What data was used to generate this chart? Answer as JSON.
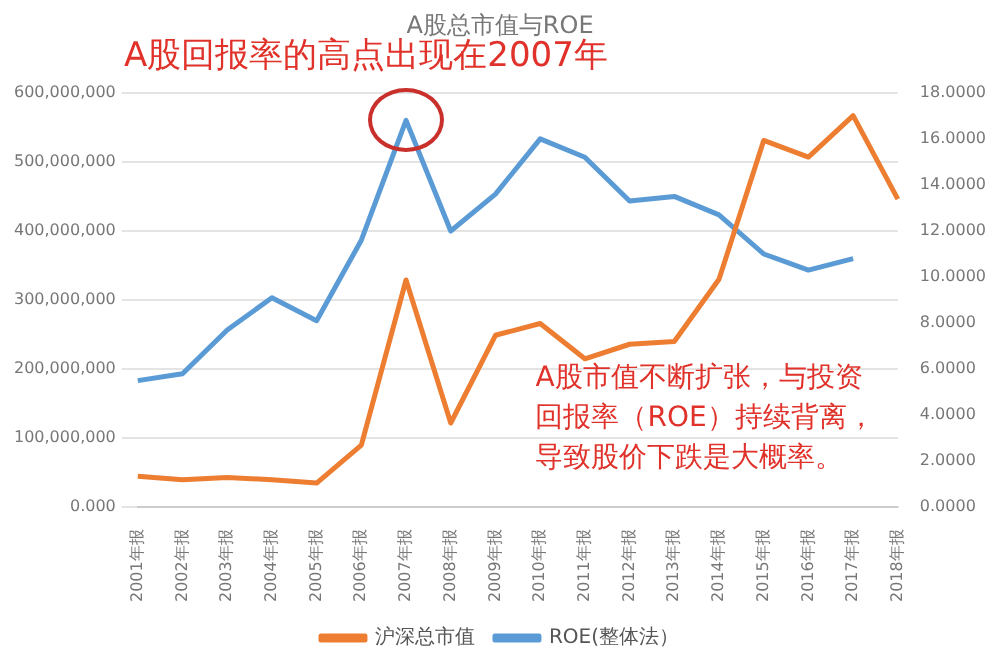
{
  "chart_data": {
    "type": "line",
    "title": "A股总市值与ROE",
    "annotations": [
      "A股回报率的高点出现在2007年",
      "A股市值不断扩张，与投资回报率（ROE）持续背离，导致股价下跌是大概率。"
    ],
    "categories": [
      "2001年报",
      "2002年报",
      "2003年报",
      "2004年报",
      "2005年报",
      "2006年报",
      "2007年报",
      "2008年报",
      "2009年报",
      "2010年报",
      "2011年报",
      "2012年报",
      "2013年报",
      "2014年报",
      "2015年报",
      "2016年报",
      "2017年报",
      "2018年报"
    ],
    "series": [
      {
        "name": "沪深总市值",
        "color": "#ed7d31",
        "values": [
          45000000,
          40000000,
          43000000,
          40000000,
          35000000,
          90000000,
          329000000,
          122000000,
          249000000,
          266000000,
          215000000,
          236000000,
          240000000,
          330000000,
          531000000,
          507000000,
          567000000,
          446000000
        ]
      },
      {
        "name": "ROE(整体法）",
        "color": "#5b9bd5",
        "axis": "y2",
        "values": [
          5.5,
          5.8,
          7.7,
          9.1,
          8.1,
          11.6,
          16.8,
          12.0,
          13.6,
          16.0,
          15.2,
          13.3,
          13.5,
          12.7,
          11.0,
          10.3,
          10.8,
          null
        ]
      }
    ],
    "ylim": [
      0,
      600000000
    ],
    "yticks": [
      {
        "value": 0,
        "label": "0.000"
      },
      {
        "value": 100000000,
        "label": "100,000,000"
      },
      {
        "value": 200000000,
        "label": "200,000,000"
      },
      {
        "value": 300000000,
        "label": "300,000,000"
      },
      {
        "value": 400000000,
        "label": "400,000,000"
      },
      {
        "value": 500000000,
        "label": "500,000,000"
      },
      {
        "value": 600000000,
        "label": "600,000,000"
      }
    ],
    "y2lim": [
      0,
      18
    ],
    "y2ticks": [
      {
        "value": 0,
        "label": "0.0000"
      },
      {
        "value": 2,
        "label": "2.0000"
      },
      {
        "value": 4,
        "label": "4.0000"
      },
      {
        "value": 6,
        "label": "6.0000"
      },
      {
        "value": 8,
        "label": "8.0000"
      },
      {
        "value": 10,
        "label": "10.0000"
      },
      {
        "value": 12,
        "label": "12.0000"
      },
      {
        "value": 14,
        "label": "14.0000"
      },
      {
        "value": 16,
        "label": "16.0000"
      },
      {
        "value": 18,
        "label": "18.0000"
      }
    ],
    "grid": "y",
    "legend": "bottom",
    "marker": "none",
    "line_style": "solid"
  }
}
